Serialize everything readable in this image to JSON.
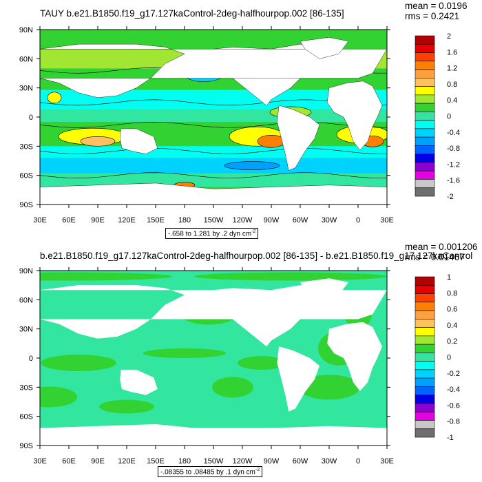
{
  "chart_data": [
    {
      "type": "heatmap",
      "title": "TAUY b.e21.B1850.f19_g17.127kaControl-2deg-halfhourpop.002 [86-135]",
      "stats": {
        "mean": "mean = 0.0196",
        "rms": "rms = 0.2421"
      },
      "x_ticks": [
        "30E",
        "60E",
        "90E",
        "120E",
        "150E",
        "180",
        "150W",
        "120W",
        "90W",
        "60W",
        "30W",
        "0",
        "30E"
      ],
      "y_ticks": [
        "90N",
        "60N",
        "30N",
        "0",
        "30S",
        "60S",
        "90S"
      ],
      "range_text": "-.658 to 1.281 by .2 dyn cm",
      "range_unit_exp": "-2",
      "levels": [
        "2",
        "1.6",
        "1.2",
        "0.8",
        "0.4",
        "0",
        "-0.4",
        "-0.8",
        "-1.2",
        "-1.6",
        "-2"
      ],
      "colors": [
        "#b40000",
        "#e60000",
        "#ff4000",
        "#ff7f00",
        "#ffa040",
        "#ffc060",
        "#ffff00",
        "#a0e632",
        "#32d232",
        "#32e6a0",
        "#00fff0",
        "#00d2ff",
        "#00a0ff",
        "#0064ff",
        "#0000e6",
        "#8c00d2",
        "#e600e6",
        "#c8c8c8",
        "#6e6e6e"
      ]
    },
    {
      "type": "heatmap",
      "title": "b.e21.B1850.f19_g17.127kaControl-2deg-halfhourpop.002 [86-135] - b.e21.B1850.f19_g17.127kaControl",
      "stats": {
        "mean": "mean = 0.001206",
        "rms": "rms = 0.01467"
      },
      "x_ticks": [
        "30E",
        "60E",
        "90E",
        "120E",
        "150E",
        "180",
        "150W",
        "120W",
        "90W",
        "60W",
        "30W",
        "0",
        "30E"
      ],
      "y_ticks": [
        "90N",
        "60N",
        "30N",
        "0",
        "30S",
        "60S",
        "90S"
      ],
      "range_text": "-.08355 to .08485 by .1 dyn cm",
      "range_unit_exp": "-2",
      "levels": [
        "1",
        "0.8",
        "0.6",
        "0.4",
        "0.2",
        "0",
        "-0.2",
        "-0.4",
        "-0.6",
        "-0.8",
        "-1"
      ],
      "colors": [
        "#b40000",
        "#e60000",
        "#ff4000",
        "#ff7f00",
        "#ffa040",
        "#ffc060",
        "#ffff00",
        "#a0e632",
        "#32d232",
        "#32e6a0",
        "#00fff0",
        "#00d2ff",
        "#00a0ff",
        "#0064ff",
        "#0000e6",
        "#8c00d2",
        "#e600e6",
        "#c8c8c8",
        "#6e6e6e"
      ]
    }
  ]
}
